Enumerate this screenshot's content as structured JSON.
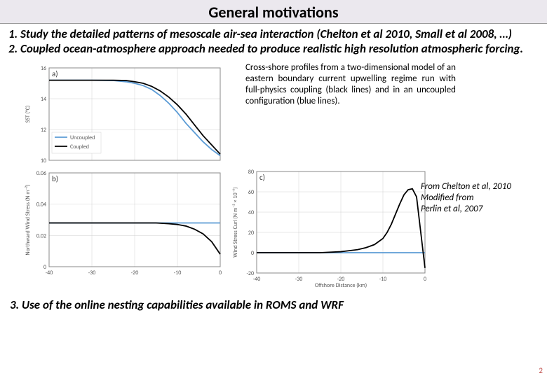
{
  "title": "General motivations",
  "motivation1_num": "1.",
  "motivation1_bold": "Study the detailed patterns of mesoscale air-sea interaction",
  "motivation1_rest": " (Chelton et al 2010, Small et al 2008, …)",
  "motivation2": "2. Coupled ocean-atmosphere approach needed  to produce realistic high resolution atmospheric forcing.",
  "caption": "Cross-shore profiles from a two-dimensional model of an eastern boundary current upwelling regime run with full-physics coupling (black lines) and in an uncoupled configuration (blue lines).",
  "attribution1": "From Chelton et al, 2010",
  "attribution2": "Modified from",
  "attribution3": "Perlin et al, 2007",
  "motivation3": "3. Use of the online nesting capabilities available  in ROMS and WRF",
  "pagenum": "2",
  "colors": {
    "uncoupled": "#5b9bd5",
    "coupled": "#000000",
    "grid": "#d0d0d0",
    "axis": "#888888",
    "bg": "#ffffff"
  },
  "chartA": {
    "panel_label": "a)",
    "ylabel": "SST (°C)",
    "xlim": [
      -40,
      0
    ],
    "ylim": [
      10,
      16
    ],
    "yticks": [
      10,
      12,
      14,
      16
    ],
    "xticks": [
      -40,
      -30,
      -20,
      -10,
      0
    ],
    "legend": {
      "uncoupled": "Uncoupled",
      "coupled": "Coupled"
    },
    "series": {
      "uncoupled_x": [
        -40,
        -35,
        -30,
        -25,
        -22,
        -20,
        -18,
        -16,
        -14,
        -12,
        -10,
        -8,
        -6,
        -4,
        -2,
        0
      ],
      "uncoupled_y": [
        15.2,
        15.2,
        15.2,
        15.18,
        15.1,
        15.0,
        14.85,
        14.6,
        14.2,
        13.7,
        13.1,
        12.4,
        11.8,
        11.2,
        10.7,
        10.3
      ],
      "coupled_x": [
        -40,
        -35,
        -30,
        -25,
        -22,
        -20,
        -18,
        -16,
        -14,
        -12,
        -10,
        -8,
        -6,
        -4,
        -2,
        0
      ],
      "coupled_y": [
        15.2,
        15.2,
        15.2,
        15.2,
        15.18,
        15.1,
        15.0,
        14.8,
        14.5,
        14.1,
        13.6,
        13.0,
        12.3,
        11.6,
        11.0,
        10.4
      ]
    }
  },
  "chartB": {
    "panel_label": "b)",
    "ylabel": "Northward Wind Stress (N m⁻²)",
    "xlim": [
      -40,
      0
    ],
    "ylim": [
      0,
      0.06
    ],
    "yticks": [
      0,
      0.02,
      0.04,
      0.06
    ],
    "ytick_labels": [
      "0",
      "0.02",
      "0.04",
      "0.06"
    ],
    "xticks": [
      -40,
      -30,
      -20,
      -10,
      0
    ],
    "series": {
      "uncoupled_x": [
        -40,
        -30,
        -20,
        -10,
        0
      ],
      "uncoupled_y": [
        0.028,
        0.028,
        0.028,
        0.028,
        0.028
      ],
      "coupled_x": [
        -40,
        -35,
        -30,
        -25,
        -20,
        -15,
        -12,
        -10,
        -8,
        -6,
        -4,
        -2,
        0
      ],
      "coupled_y": [
        0.028,
        0.028,
        0.028,
        0.028,
        0.028,
        0.028,
        0.0275,
        0.027,
        0.026,
        0.024,
        0.021,
        0.016,
        0.008
      ]
    }
  },
  "chartC": {
    "panel_label": "c)",
    "ylabel": "Wind Stress Curl (N m⁻² × 10⁻⁶)",
    "xlabel": "Offshore Distance (km)",
    "xlim": [
      -40,
      0
    ],
    "ylim": [
      -20,
      80
    ],
    "yticks": [
      -20,
      0,
      20,
      40,
      60,
      80
    ],
    "xticks": [
      -40,
      -30,
      -20,
      -10,
      0
    ],
    "series": {
      "uncoupled_x": [
        -40,
        -30,
        -20,
        -10,
        0
      ],
      "uncoupled_y": [
        0,
        0,
        0,
        0,
        0
      ],
      "coupled_x": [
        -40,
        -35,
        -30,
        -25,
        -20,
        -18,
        -16,
        -14,
        -12,
        -10,
        -9,
        -8,
        -7,
        -6,
        -5,
        -4,
        -3,
        -2,
        -1,
        0
      ],
      "coupled_y": [
        0,
        0,
        0,
        0,
        1,
        2,
        3,
        5,
        8,
        14,
        20,
        28,
        38,
        48,
        57,
        62,
        63,
        55,
        20,
        -15
      ]
    }
  }
}
